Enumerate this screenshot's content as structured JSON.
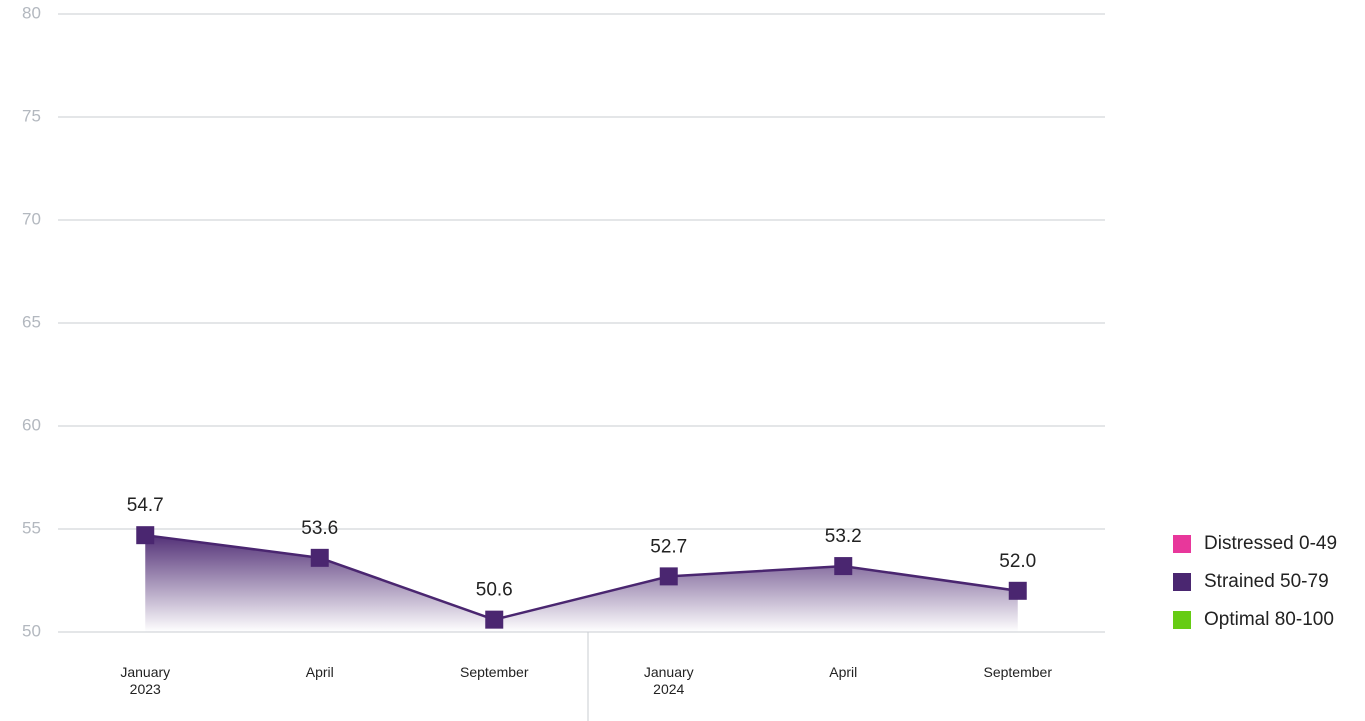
{
  "chart_data": {
    "type": "line",
    "categories": [
      [
        "January",
        "2023"
      ],
      [
        "April"
      ],
      [
        "September"
      ],
      [
        "January",
        "2024"
      ],
      [
        "April"
      ],
      [
        "September"
      ]
    ],
    "series": [
      {
        "name": "Strained 50-79",
        "color": "#4a2670",
        "values": [
          54.7,
          53.6,
          50.6,
          52.7,
          53.2,
          52.0
        ],
        "value_labels": [
          "54.7",
          "53.6",
          "50.6",
          "52.7",
          "53.2",
          "52.0"
        ]
      }
    ],
    "ylim": [
      50,
      80
    ],
    "yticks": [
      50,
      55,
      60,
      65,
      70,
      75,
      80
    ],
    "grid": true,
    "legend": [
      {
        "label": "Distressed 0-49",
        "color": "#e8379b"
      },
      {
        "label": "Strained 50-79",
        "color": "#4a2670"
      },
      {
        "label": "Optimal 80-100",
        "color": "#66cc14"
      }
    ]
  }
}
